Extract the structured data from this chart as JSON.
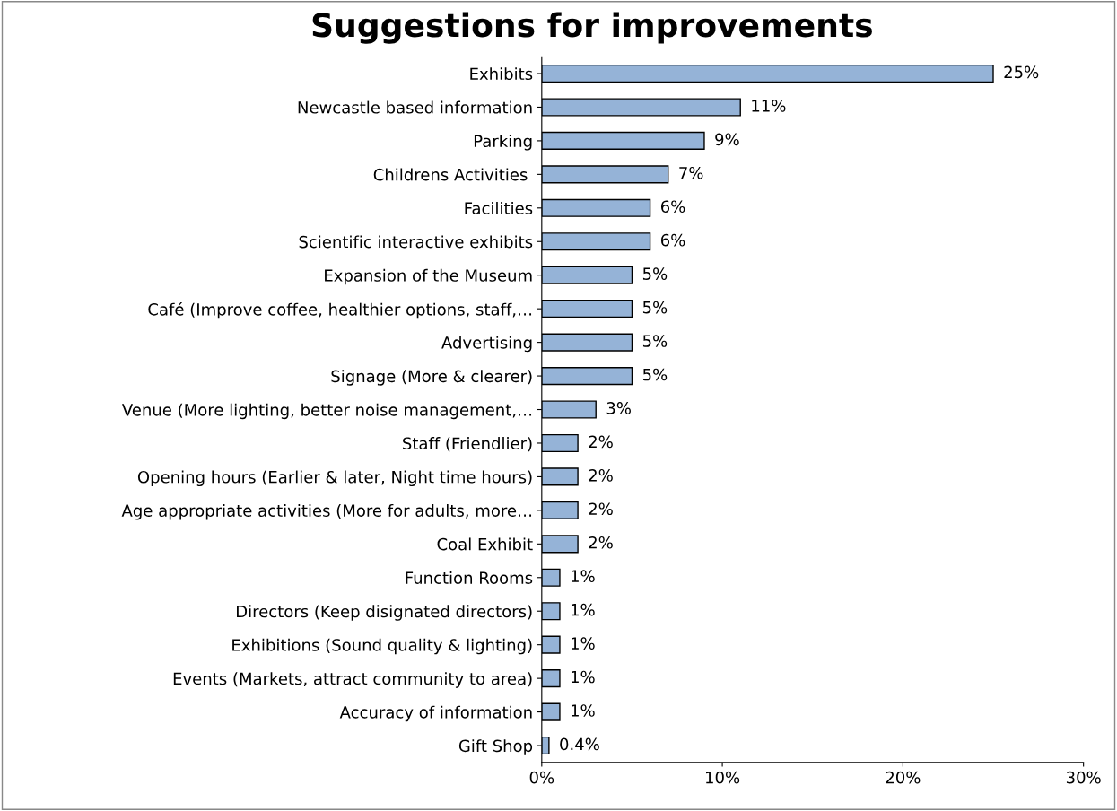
{
  "chart_data": {
    "type": "bar",
    "orientation": "horizontal",
    "title": "Suggestions for improvements",
    "categories": [
      "Exhibits",
      "Newcastle based information",
      "Parking",
      "Childrens Activities ",
      "Facilities",
      "Scientific interactive exhibits",
      "Expansion of the Museum",
      "Café (Improve coffee, healthier options, staff,…",
      "Advertising",
      "Signage (More & clearer)",
      "Venue (More lighting, better noise management,…",
      "Staff (Friendlier)",
      "Opening hours (Earlier & later, Night time hours)",
      "Age appropriate activities (More for adults, more…",
      "Coal Exhibit",
      "Function Rooms",
      "Directors (Keep disignated directors)",
      "Exhibitions (Sound quality & lighting)",
      "Events (Markets, attract community to area)",
      "Accuracy of information",
      "Gift Shop"
    ],
    "values": [
      25,
      11,
      9,
      7,
      6,
      6,
      5,
      5,
      5,
      5,
      3,
      2,
      2,
      2,
      2,
      1,
      1,
      1,
      1,
      1,
      0.4
    ],
    "value_labels": [
      "25%",
      "11%",
      "9%",
      "7%",
      "6%",
      "6%",
      "5%",
      "5%",
      "5%",
      "5%",
      "3%",
      "2%",
      "2%",
      "2%",
      "2%",
      "1%",
      "1%",
      "1%",
      "1%",
      "1%",
      "0.4%"
    ],
    "color": "#95b3d7",
    "xlim": [
      0,
      30
    ],
    "xticks": [
      {
        "value": 0,
        "label": "0%"
      },
      {
        "value": 10,
        "label": "10%"
      },
      {
        "value": 20,
        "label": "20%"
      },
      {
        "value": 30,
        "label": "30%"
      }
    ],
    "grid": false,
    "legend": false
  }
}
